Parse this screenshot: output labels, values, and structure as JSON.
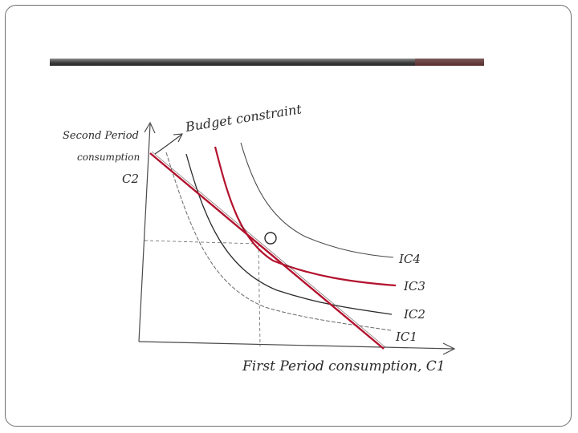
{
  "slide": {
    "diagram": {
      "y_axis_label_line1": "Second Period",
      "y_axis_label_line2": "consumption",
      "y_axis_symbol": "C2",
      "x_axis_label": "First Period consumption, C1",
      "budget_label": "Budget constraint",
      "optimum_label": "O",
      "curves": [
        {
          "label": "IC4",
          "color": "#3a3a3a"
        },
        {
          "label": "IC3",
          "color": "#b3122e"
        },
        {
          "label": "IC2",
          "color": "#2a2a2a"
        },
        {
          "label": "IC1",
          "color": "#555555"
        }
      ],
      "budget_color": "#b3122e"
    }
  }
}
